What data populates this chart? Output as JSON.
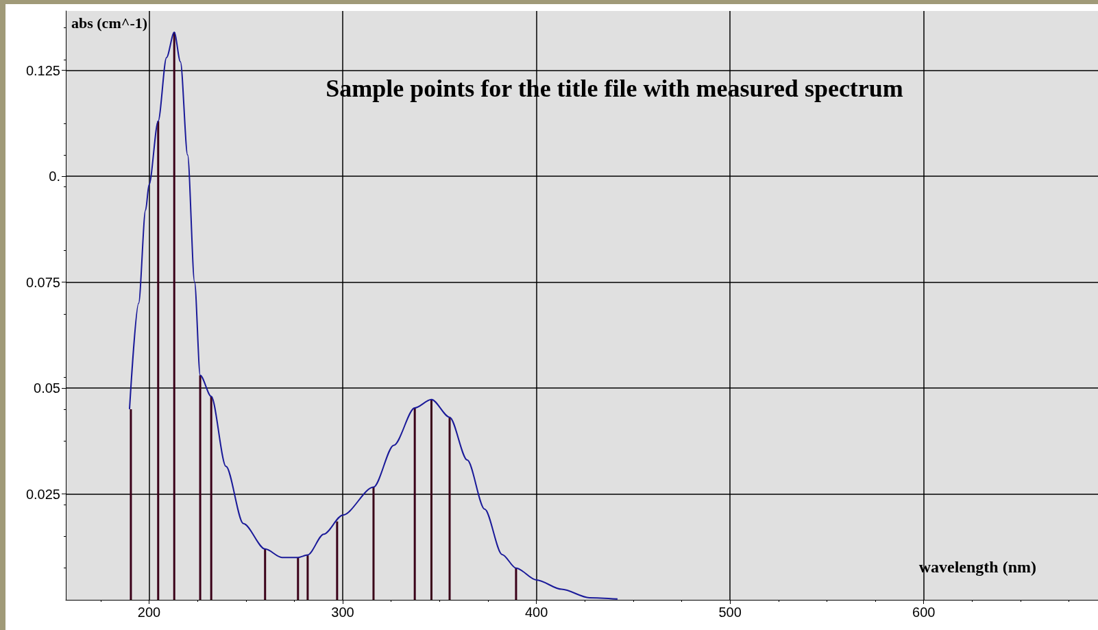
{
  "chart_data": {
    "type": "line",
    "title": "Sample points for the title file with measured spectrum",
    "xlabel": "wavelength (nm)",
    "ylabel": "abs (cm^-1)",
    "series": [
      {
        "type": "bar",
        "color": "#3a0018",
        "x": [
          190.6,
          204.7,
          213,
          226.4,
          232.1,
          259.9,
          276.9,
          281.9,
          297.1,
          315.9,
          337.2,
          345.8,
          355.2,
          389.5
        ],
        "values": [
          0.045,
          0.113,
          0.134,
          0.053,
          0.048,
          0.012,
          0.01,
          0.0105,
          0.0185,
          0.0266,
          0.0453,
          0.0473,
          0.0431,
          0.0075
        ]
      },
      {
        "color": "#1a1a99",
        "x": [
          189.9,
          194.6,
          198.2,
          200,
          204.7,
          209,
          213,
          216.2,
          219.9,
          223.5,
          226.4,
          232.1,
          239.7,
          248.7,
          259.9,
          268.6,
          276.9,
          281.9,
          290.2,
          300,
          315.9,
          326.4,
          337.2,
          345.8,
          355.2,
          364.3,
          373.3,
          382.3,
          389.5,
          400,
          413,
          427.4,
          441.9
        ],
        "values": [
          0.045,
          0.07,
          0.092,
          0.098,
          0.113,
          0.128,
          0.134,
          0.127,
          0.105,
          0.075,
          0.053,
          0.048,
          0.0315,
          0.018,
          0.012,
          0.01,
          0.01,
          0.0106,
          0.0155,
          0.02,
          0.0266,
          0.0365,
          0.0453,
          0.0473,
          0.0431,
          0.033,
          0.0214,
          0.0107,
          0.0075,
          0.0047,
          0.0025,
          0.0005,
          0.0002
        ]
      }
    ],
    "xlim": [
      157,
      690
    ],
    "xticks": [
      200,
      300,
      400,
      500,
      600
    ],
    "ylim": [
      0,
      0.139
    ],
    "yticks": [
      0.025,
      0.05,
      0.075,
      {
        "value": 0.1,
        "label": "0."
      },
      0.125
    ],
    "grid": true,
    "marker": "none",
    "line_style": "solid"
  }
}
